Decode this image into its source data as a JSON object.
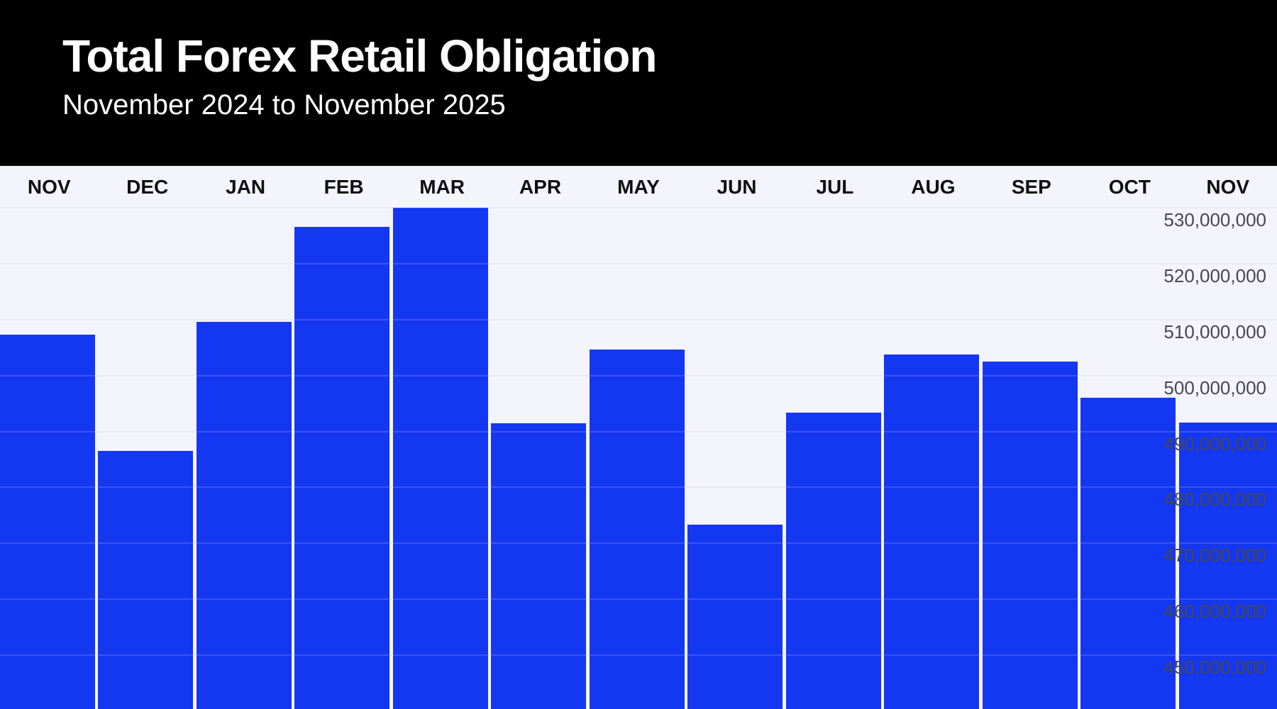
{
  "header": {
    "title": "Total Forex Retail Obligation",
    "subtitle": "November 2024 to November 2025"
  },
  "chart_data": {
    "type": "bar",
    "title": "Total Forex Retail Obligation",
    "subtitle": "November 2024 to November 2025",
    "categories": [
      "NOV",
      "DEC",
      "JAN",
      "FEB",
      "MAR",
      "APR",
      "MAY",
      "JUN",
      "JUL",
      "AUG",
      "SEP",
      "OCT",
      "NOV"
    ],
    "values": [
      507300000,
      486500000,
      509600000,
      526600000,
      530000000,
      491400000,
      504600000,
      473300000,
      493400000,
      503800000,
      502500000,
      496000000,
      491600000
    ],
    "y_ticks": [
      530000000,
      520000000,
      510000000,
      500000000,
      490000000,
      480000000,
      470000000,
      460000000,
      450000000
    ],
    "y_tick_labels": [
      "530,000,000",
      "520,000,000",
      "510,000,000",
      "500,000,000",
      "490,000,000",
      "480,000,000",
      "470,000,000",
      "460,000,000",
      "450,000,000"
    ],
    "xlabel": "",
    "ylabel": "",
    "ylim_top": 530000000,
    "ylim_bottom_visible": 440400000,
    "grid": true,
    "legend": false,
    "tick_side": "right",
    "bars_clipped_at_bottom": true
  },
  "colors": {
    "bar": "#1437f2",
    "background": "#f4f4fc",
    "header_background": "#000000",
    "gridline": "#e5e5ef",
    "tick_text": "#47474f",
    "month_text": "#0f0f12",
    "title_text": "#ffffff"
  }
}
